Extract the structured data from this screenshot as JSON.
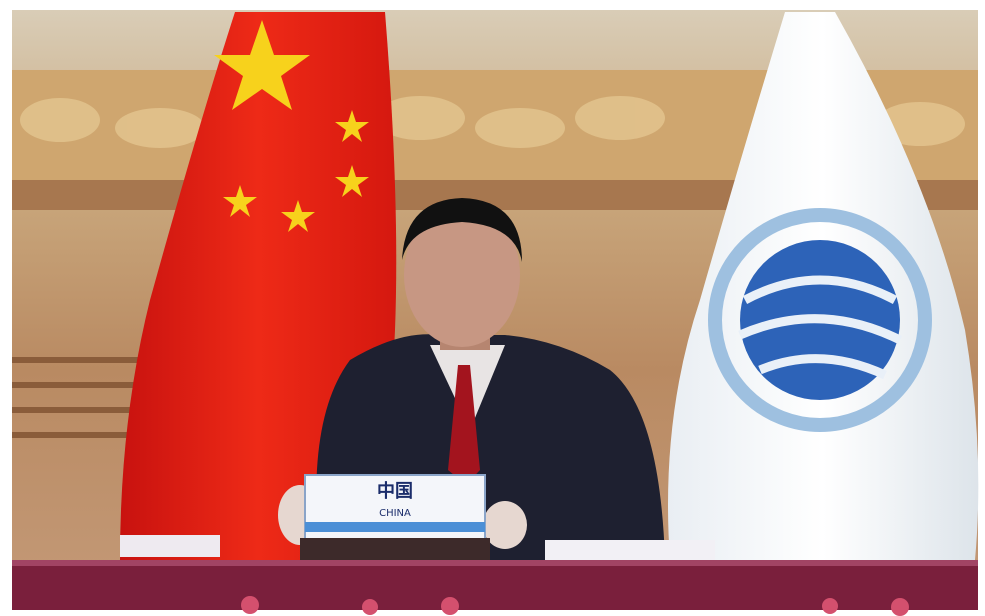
{
  "nameplate": {
    "title": "中国",
    "subtitle": "CHINA"
  }
}
